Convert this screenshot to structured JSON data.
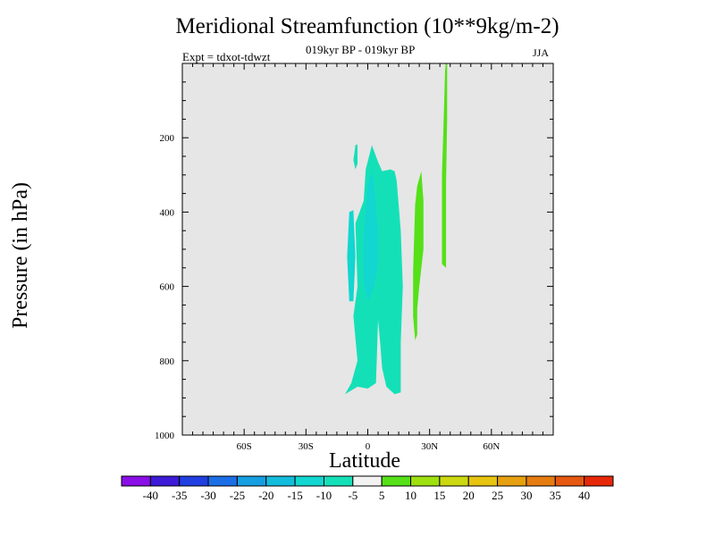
{
  "chart_data": {
    "type": "contour",
    "title": "Meridional Streamfunction (10**9kg/m-2)",
    "subtitle": "019kyr BP - 019kyr BP",
    "experiment": "Expt = tdxot-tdwzt",
    "season": "JJA",
    "xlabel": "Latitude",
    "ylabel": "Pressure (in hPa)",
    "xlim": [
      -90,
      90
    ],
    "ylim": [
      1000,
      0
    ],
    "x_ticks": [
      {
        "value": -60,
        "label": "60S"
      },
      {
        "value": -30,
        "label": "30S"
      },
      {
        "value": 0,
        "label": "0"
      },
      {
        "value": 30,
        "label": "30N"
      },
      {
        "value": 60,
        "label": "60N"
      }
    ],
    "y_ticks": [
      {
        "value": 200,
        "label": "200"
      },
      {
        "value": 400,
        "label": "400"
      },
      {
        "value": 600,
        "label": "600"
      },
      {
        "value": 800,
        "label": "800"
      },
      {
        "value": 1000,
        "label": "1000"
      }
    ],
    "background_color": "#e6e6e6",
    "colorbar": {
      "colors": [
        "#8a0ee6",
        "#3c1ad8",
        "#1f3fe0",
        "#1c6ee6",
        "#169ee2",
        "#14bcdc",
        "#12d6d0",
        "#14e0b8",
        "#f2f2f2",
        "#55e018",
        "#9ee010",
        "#ccd810",
        "#e6c410",
        "#e6a010",
        "#e67c10",
        "#e65810",
        "#e62808"
      ],
      "labels": [
        "-40",
        "-35",
        "-30",
        "-25",
        "-20",
        "-15",
        "-10",
        "-5",
        "5",
        "10",
        "15",
        "20",
        "25",
        "30",
        "35",
        "40"
      ]
    },
    "regions": [
      {
        "name": "-5 to -10",
        "color": "#14e0b8",
        "points": [
          [
            -11,
            890
          ],
          [
            -8,
            860
          ],
          [
            -5,
            800
          ],
          [
            -7,
            680
          ],
          [
            -5,
            600
          ],
          [
            -6,
            430
          ],
          [
            -2,
            370
          ],
          [
            -1,
            285
          ],
          [
            2,
            220
          ],
          [
            5,
            265
          ],
          [
            7,
            290
          ],
          [
            11,
            285
          ],
          [
            13,
            290
          ],
          [
            14,
            315
          ],
          [
            16,
            450
          ],
          [
            17,
            600
          ],
          [
            16,
            750
          ],
          [
            16,
            885
          ],
          [
            13,
            890
          ],
          [
            9,
            870
          ],
          [
            7,
            820
          ],
          [
            6,
            750
          ],
          [
            5,
            690
          ],
          [
            4,
            860
          ],
          [
            0,
            875
          ],
          [
            -5,
            870
          ]
        ]
      },
      {
        "name": "-5 to -10 small",
        "color": "#14e0b8",
        "points": [
          [
            -7,
            260
          ],
          [
            -6,
            220
          ],
          [
            -5,
            218
          ],
          [
            -5,
            270
          ],
          [
            -6,
            285
          ]
        ]
      },
      {
        "name": "-10 to -15",
        "color": "#12d6d0",
        "points": [
          [
            -2,
            590
          ],
          [
            -2,
            460
          ],
          [
            0,
            330
          ],
          [
            2,
            290
          ],
          [
            3,
            330
          ],
          [
            5,
            450
          ],
          [
            5,
            540
          ],
          [
            3,
            600
          ],
          [
            0,
            640
          ]
        ]
      },
      {
        "name": "-10 to -15 west",
        "color": "#12d6d0",
        "points": [
          [
            -9,
            640
          ],
          [
            -10,
            520
          ],
          [
            -9,
            400
          ],
          [
            -7,
            395
          ],
          [
            -6,
            520
          ],
          [
            -7,
            640
          ]
        ]
      },
      {
        "name": "5 to 10 mid",
        "color": "#55e018",
        "points": [
          [
            22,
            560
          ],
          [
            23,
            380
          ],
          [
            24,
            330
          ],
          [
            26,
            290
          ],
          [
            27,
            370
          ],
          [
            27,
            500
          ],
          [
            25,
            600
          ],
          [
            24,
            660
          ],
          [
            24,
            730
          ],
          [
            23,
            745
          ],
          [
            22,
            680
          ]
        ]
      },
      {
        "name": "5 to 10 north",
        "color": "#55e018",
        "points": [
          [
            36,
            540
          ],
          [
            36,
            300
          ],
          [
            37,
            120
          ],
          [
            37.5,
            20
          ],
          [
            38,
            -10
          ],
          [
            38.5,
            -10
          ],
          [
            38.5,
            150
          ],
          [
            38,
            320
          ],
          [
            38,
            550
          ]
        ]
      }
    ]
  }
}
